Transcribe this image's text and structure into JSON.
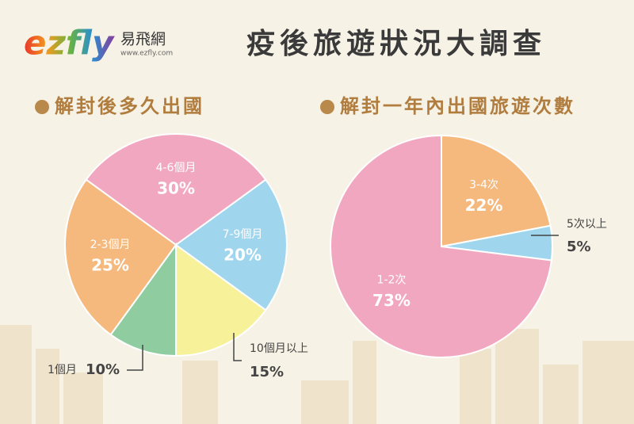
{
  "header": {
    "logo": "ezfly",
    "logo_cn": "易飛網",
    "logo_url": "www.ezfly.com",
    "title": "疫後旅遊狀況大調查"
  },
  "chart_data": [
    {
      "type": "pie",
      "title": "解封後多久出國",
      "categories": [
        "4-6個月",
        "7-9個月",
        "10個月以上",
        "1個月",
        "2-3個月"
      ],
      "values": [
        30,
        20,
        15,
        10,
        25
      ],
      "value_labels": [
        "30%",
        "20%",
        "15%",
        "10%",
        "25%"
      ],
      "colors": [
        "#f2a7c0",
        "#9fd6ee",
        "#f7f29a",
        "#8fcca0",
        "#f5b87d"
      ]
    },
    {
      "type": "pie",
      "title": "解封一年內出國旅遊次數",
      "categories": [
        "3-4次",
        "5次以上",
        "1-2次"
      ],
      "values": [
        22,
        5,
        73
      ],
      "value_labels": [
        "22%",
        "5%",
        "73%"
      ],
      "colors": [
        "#f5b87d",
        "#9fd6ee",
        "#f2a7c0"
      ]
    }
  ]
}
